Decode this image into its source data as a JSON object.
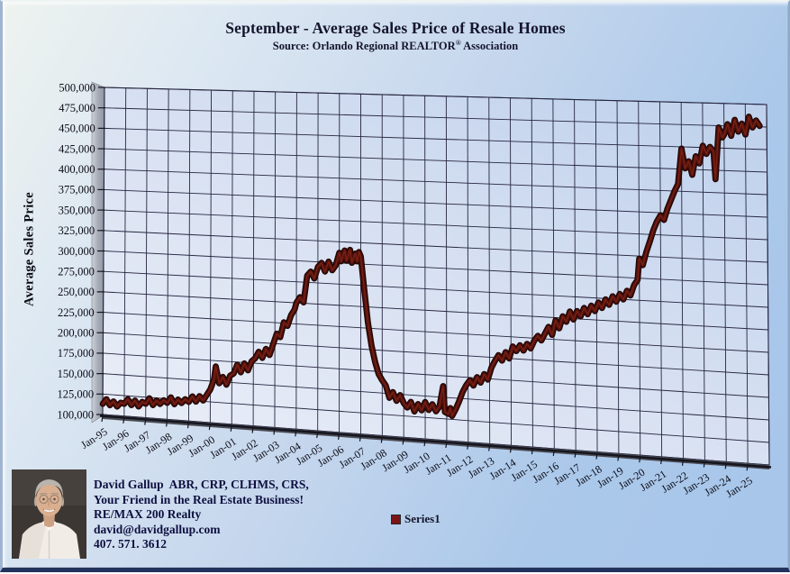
{
  "title": "September - Average Sales Price of Resale Homes",
  "subtitle": {
    "prefix": "Source: Orlando Regional REALTOR",
    "reg": "®",
    "suffix": " Association"
  },
  "y_axis_title": "Average Sales Price",
  "legend": {
    "label": "Series1",
    "marker_color": "#7a1416"
  },
  "contact": {
    "lines": [
      "David Gallup  ABR, CRP, CLHMS, CRS,",
      "Your Friend in the Real Estate Business!",
      "RE/MAX 200 Realty",
      "david@davidgallup.com",
      "407. 571. 3612"
    ]
  },
  "chart_data": {
    "type": "line",
    "title": "September - Average Sales Price of Resale Homes",
    "subtitle": "Source: Orlando Regional REALTOR® Association",
    "ylabel": "Average Sales Price",
    "ylim": [
      100000,
      500000
    ],
    "ytick_step": 25000,
    "grid": true,
    "style": "excel-3d-perspective",
    "legend_position": "bottom-center",
    "x_unit": "month_index_from_Jan-1995",
    "x_range_months": [
      0,
      372
    ],
    "x_tick_labels": [
      "Jan-95",
      "Jan-96",
      "Jan-97",
      "Jan-98",
      "Jan-99",
      "Jan-00",
      "Jan-01",
      "Jan-02",
      "Jan-03",
      "Jan-04",
      "Jan-05",
      "Jan-06",
      "Jan-07",
      "Jan-08",
      "Jan-09",
      "Jan-10",
      "Jan-11",
      "Jan-12",
      "Jan-13",
      "Jan-14",
      "Jan-15",
      "Jan-16",
      "Jan-17",
      "Jan-18",
      "Jan-19",
      "Jan-20",
      "Jan-21",
      "Jan-22",
      "Jan-23",
      "Jan-24",
      "Jan-25"
    ],
    "series": [
      {
        "name": "Series1",
        "color": "#4e110c",
        "outline_color": "#1d0503",
        "points": [
          [
            0,
            113000
          ],
          [
            2,
            119000
          ],
          [
            4,
            112000
          ],
          [
            6,
            117000
          ],
          [
            8,
            111000
          ],
          [
            10,
            116000
          ],
          [
            12,
            115000
          ],
          [
            14,
            121000
          ],
          [
            16,
            114000
          ],
          [
            18,
            120000
          ],
          [
            20,
            113000
          ],
          [
            22,
            119000
          ],
          [
            24,
            117000
          ],
          [
            26,
            124000
          ],
          [
            28,
            116000
          ],
          [
            30,
            122000
          ],
          [
            32,
            118000
          ],
          [
            34,
            123000
          ],
          [
            36,
            120000
          ],
          [
            38,
            127000
          ],
          [
            40,
            119000
          ],
          [
            42,
            125000
          ],
          [
            44,
            121000
          ],
          [
            46,
            126000
          ],
          [
            48,
            123000
          ],
          [
            50,
            130000
          ],
          [
            52,
            124000
          ],
          [
            54,
            131000
          ],
          [
            56,
            126000
          ],
          [
            58,
            133000
          ],
          [
            60,
            140000
          ],
          [
            62,
            152000
          ],
          [
            63,
            168000
          ],
          [
            65,
            148000
          ],
          [
            67,
            156000
          ],
          [
            69,
            147000
          ],
          [
            71,
            158000
          ],
          [
            73,
            161000
          ],
          [
            75,
            172000
          ],
          [
            77,
            163000
          ],
          [
            79,
            174000
          ],
          [
            81,
            166000
          ],
          [
            83,
            177000
          ],
          [
            85,
            181000
          ],
          [
            87,
            189000
          ],
          [
            89,
            182000
          ],
          [
            91,
            193000
          ],
          [
            93,
            186000
          ],
          [
            95,
            199000
          ],
          [
            97,
            212000
          ],
          [
            99,
            208000
          ],
          [
            101,
            226000
          ],
          [
            103,
            222000
          ],
          [
            105,
            235000
          ],
          [
            107,
            242000
          ],
          [
            108,
            250000
          ],
          [
            110,
            257000
          ],
          [
            112,
            251000
          ],
          [
            114,
            283000
          ],
          [
            116,
            288000
          ],
          [
            118,
            280000
          ],
          [
            120,
            294000
          ],
          [
            122,
            299000
          ],
          [
            124,
            289000
          ],
          [
            126,
            301000
          ],
          [
            128,
            291000
          ],
          [
            130,
            297000
          ],
          [
            132,
            312000
          ],
          [
            133,
            302000
          ],
          [
            135,
            315000
          ],
          [
            136,
            303000
          ],
          [
            138,
            316000
          ],
          [
            139,
            301000
          ],
          [
            141,
            312000
          ],
          [
            142,
            303000
          ],
          [
            143,
            314000
          ],
          [
            144,
            309000
          ],
          [
            146,
            270000
          ],
          [
            148,
            232000
          ],
          [
            150,
            205000
          ],
          [
            152,
            186000
          ],
          [
            154,
            172000
          ],
          [
            156,
            165000
          ],
          [
            158,
            159000
          ],
          [
            160,
            145000
          ],
          [
            162,
            152000
          ],
          [
            164,
            142000
          ],
          [
            166,
            149000
          ],
          [
            168,
            140000
          ],
          [
            170,
            135000
          ],
          [
            172,
            142000
          ],
          [
            174,
            131000
          ],
          [
            176,
            140000
          ],
          [
            178,
            133000
          ],
          [
            180,
            143000
          ],
          [
            182,
            134000
          ],
          [
            184,
            141000
          ],
          [
            186,
            133000
          ],
          [
            188,
            139000
          ],
          [
            190,
            163000
          ],
          [
            191,
            133000
          ],
          [
            193,
            131000
          ],
          [
            194,
            138000
          ],
          [
            195,
            129000
          ],
          [
            197,
            137000
          ],
          [
            199,
            147000
          ],
          [
            201,
            158000
          ],
          [
            203,
            166000
          ],
          [
            205,
            172000
          ],
          [
            207,
            166000
          ],
          [
            209,
            176000
          ],
          [
            211,
            170000
          ],
          [
            213,
            180000
          ],
          [
            215,
            174000
          ],
          [
            217,
            188000
          ],
          [
            219,
            196000
          ],
          [
            221,
            203000
          ],
          [
            223,
            197000
          ],
          [
            225,
            207000
          ],
          [
            227,
            200000
          ],
          [
            229,
            214000
          ],
          [
            231,
            209000
          ],
          [
            233,
            216000
          ],
          [
            235,
            210000
          ],
          [
            237,
            218000
          ],
          [
            239,
            213000
          ],
          [
            241,
            222000
          ],
          [
            243,
            228000
          ],
          [
            245,
            223000
          ],
          [
            247,
            231000
          ],
          [
            249,
            239000
          ],
          [
            251,
            230000
          ],
          [
            253,
            247000
          ],
          [
            255,
            238000
          ],
          [
            257,
            252000
          ],
          [
            259,
            246000
          ],
          [
            261,
            258000
          ],
          [
            263,
            249000
          ],
          [
            265,
            259000
          ],
          [
            267,
            253000
          ],
          [
            269,
            263000
          ],
          [
            271,
            256000
          ],
          [
            273,
            266000
          ],
          [
            275,
            260000
          ],
          [
            277,
            270000
          ],
          [
            279,
            264000
          ],
          [
            281,
            274000
          ],
          [
            283,
            268000
          ],
          [
            285,
            278000
          ],
          [
            287,
            272000
          ],
          [
            289,
            281000
          ],
          [
            291,
            275000
          ],
          [
            293,
            285000
          ],
          [
            295,
            280000
          ],
          [
            297,
            292000
          ],
          [
            299,
            298000
          ],
          [
            300,
            322000
          ],
          [
            302,
            315000
          ],
          [
            304,
            330000
          ],
          [
            306,
            342000
          ],
          [
            308,
            355000
          ],
          [
            310,
            365000
          ],
          [
            312,
            372000
          ],
          [
            314,
            367000
          ],
          [
            316,
            380000
          ],
          [
            318,
            390000
          ],
          [
            320,
            400000
          ],
          [
            322,
            408000
          ],
          [
            324,
            448000
          ],
          [
            326,
            426000
          ],
          [
            328,
            434000
          ],
          [
            330,
            419000
          ],
          [
            332,
            440000
          ],
          [
            334,
            432000
          ],
          [
            336,
            452000
          ],
          [
            338,
            443000
          ],
          [
            340,
            451000
          ],
          [
            342,
            446000
          ],
          [
            343,
            415000
          ],
          [
            345,
            473000
          ],
          [
            347,
            462000
          ],
          [
            348,
            465000
          ],
          [
            350,
            477000
          ],
          [
            352,
            464000
          ],
          [
            354,
            482000
          ],
          [
            356,
            469000
          ],
          [
            358,
            478000
          ],
          [
            360,
            466000
          ],
          [
            362,
            486000
          ],
          [
            364,
            474000
          ],
          [
            366,
            482000
          ],
          [
            368,
            476000
          ]
        ]
      }
    ]
  }
}
